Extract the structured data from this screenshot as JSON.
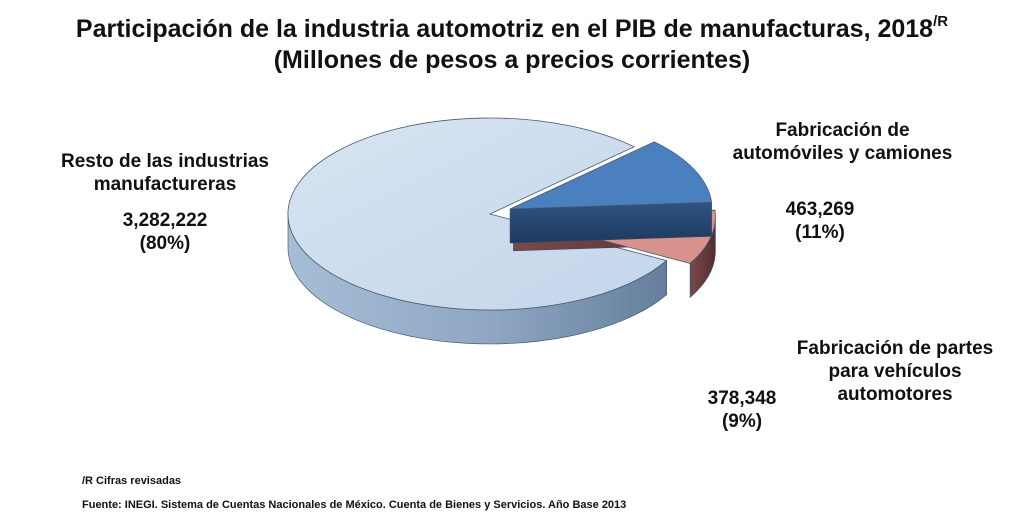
{
  "title": {
    "line1": "Participación de la industria automotriz en el PIB de manufacturas, 2018",
    "sup": "/R",
    "line2": "(Millones de pesos a precios corrientes)"
  },
  "chart_data": {
    "type": "pie",
    "style": "3d-exploded",
    "unit": "Millones de pesos a precios corrientes",
    "slices": [
      {
        "label_line1": "Resto de las industrias",
        "label_line2": "manufactureras",
        "label_line3": "",
        "value_text": "3,282,222",
        "pct_text": "(80%)",
        "value": 3282222,
        "color": "#c9dbef"
      },
      {
        "label_line1": "Fabricación de",
        "label_line2": "automóviles y camiones",
        "label_line3": "",
        "value_text": "463,269",
        "pct_text": "(11%)",
        "value": 463269,
        "color": "#4a7fc0"
      },
      {
        "label_line1": "Fabricación de partes",
        "label_line2": "para vehículos",
        "label_line3": "automotores",
        "value_text": "378,348",
        "pct_text": "(9%)",
        "value": 378348,
        "color": "#d9918d"
      }
    ]
  },
  "notes": {
    "revised": "/R Cifras revisadas",
    "source": "Fuente: INEGI. Sistema de Cuentas Nacionales de México. Cuenta de Bienes y Servicios. Año Base 2013"
  }
}
